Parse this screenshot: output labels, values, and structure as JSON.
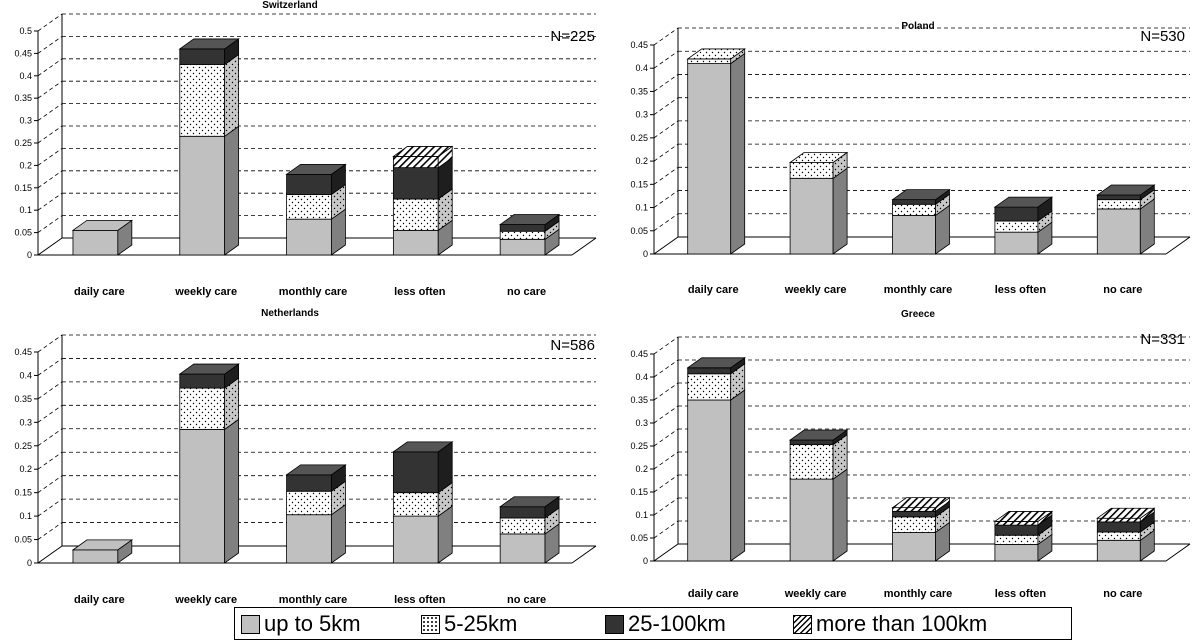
{
  "chart_data": [
    {
      "type": "bar",
      "title": "Switzerland",
      "annotation": "N=225",
      "categories": [
        "daily care",
        "weekly care",
        "monthly care",
        "less often",
        "no care"
      ],
      "ylim": [
        0,
        0.5
      ],
      "yticks": [
        "0",
        "0.05",
        "0.1",
        "0.15",
        "0.2",
        "0.25",
        "0.3",
        "0.35",
        "0.4",
        "0.45",
        "0.5"
      ],
      "series": [
        {
          "name": "up to 5km",
          "values": [
            0.055,
            0.265,
            0.08,
            0.055,
            0.035
          ]
        },
        {
          "name": "5-25km",
          "values": [
            0.0,
            0.16,
            0.055,
            0.07,
            0.018
          ]
        },
        {
          "name": "25-100km",
          "values": [
            0.0,
            0.035,
            0.045,
            0.07,
            0.015
          ]
        },
        {
          "name": "more than 100km",
          "values": [
            0.0,
            0.0,
            0.0,
            0.025,
            0.0
          ]
        }
      ]
    },
    {
      "type": "bar",
      "title": "Poland",
      "annotation": "N=530",
      "categories": [
        "daily care",
        "weekly care",
        "monthly care",
        "less often",
        "no care"
      ],
      "ylim": [
        0,
        0.45
      ],
      "yticks": [
        "0",
        "0.05",
        "0.1",
        "0.15",
        "0.2",
        "0.25",
        "0.3",
        "0.35",
        "0.4",
        "0.45"
      ],
      "series": [
        {
          "name": "up to 5km",
          "values": [
            0.41,
            0.163,
            0.083,
            0.047,
            0.097
          ]
        },
        {
          "name": "5-25km",
          "values": [
            0.01,
            0.034,
            0.024,
            0.024,
            0.02
          ]
        },
        {
          "name": "25-100km",
          "values": [
            0.0,
            0.0,
            0.01,
            0.03,
            0.01
          ]
        },
        {
          "name": "more than 100km",
          "values": [
            0.0,
            0.0,
            0.0,
            0.0,
            0.0
          ]
        }
      ]
    },
    {
      "type": "bar",
      "title": "Netherlands",
      "annotation": "N=586",
      "categories": [
        "daily care",
        "weekly care",
        "monthly care",
        "less often",
        "no care"
      ],
      "ylim": [
        0,
        0.45
      ],
      "yticks": [
        "0",
        "0.05",
        "0.1",
        "0.15",
        "0.2",
        "0.25",
        "0.3",
        "0.35",
        "0.4",
        "0.45"
      ],
      "series": [
        {
          "name": "up to 5km",
          "values": [
            0.028,
            0.285,
            0.103,
            0.1,
            0.062
          ]
        },
        {
          "name": "5-25km",
          "values": [
            0.0,
            0.088,
            0.05,
            0.05,
            0.034
          ]
        },
        {
          "name": "25-100km",
          "values": [
            0.0,
            0.03,
            0.035,
            0.087,
            0.024
          ]
        },
        {
          "name": "more than 100km",
          "values": [
            0.0,
            0.0,
            0.0,
            0.0,
            0.0
          ]
        }
      ]
    },
    {
      "type": "bar",
      "title": "Greece",
      "annotation": "N=331",
      "categories": [
        "daily care",
        "weekly care",
        "monthly care",
        "less often",
        "no care"
      ],
      "ylim": [
        0,
        0.45
      ],
      "yticks": [
        "0",
        "0.05",
        "0.1",
        "0.15",
        "0.2",
        "0.25",
        "0.3",
        "0.35",
        "0.4",
        "0.45"
      ],
      "series": [
        {
          "name": "up to 5km",
          "values": [
            0.35,
            0.178,
            0.062,
            0.036,
            0.045
          ]
        },
        {
          "name": "5-25km",
          "values": [
            0.057,
            0.075,
            0.034,
            0.02,
            0.018
          ]
        },
        {
          "name": "25-100km",
          "values": [
            0.013,
            0.01,
            0.012,
            0.022,
            0.022
          ]
        },
        {
          "name": "more than 100km",
          "values": [
            0.0,
            0.0,
            0.008,
            0.008,
            0.008
          ]
        }
      ]
    }
  ],
  "legend": {
    "items": [
      {
        "label": "up to 5km"
      },
      {
        "label": "5-25km"
      },
      {
        "label": "25-100km"
      },
      {
        "label": "more than 100km"
      }
    ]
  }
}
